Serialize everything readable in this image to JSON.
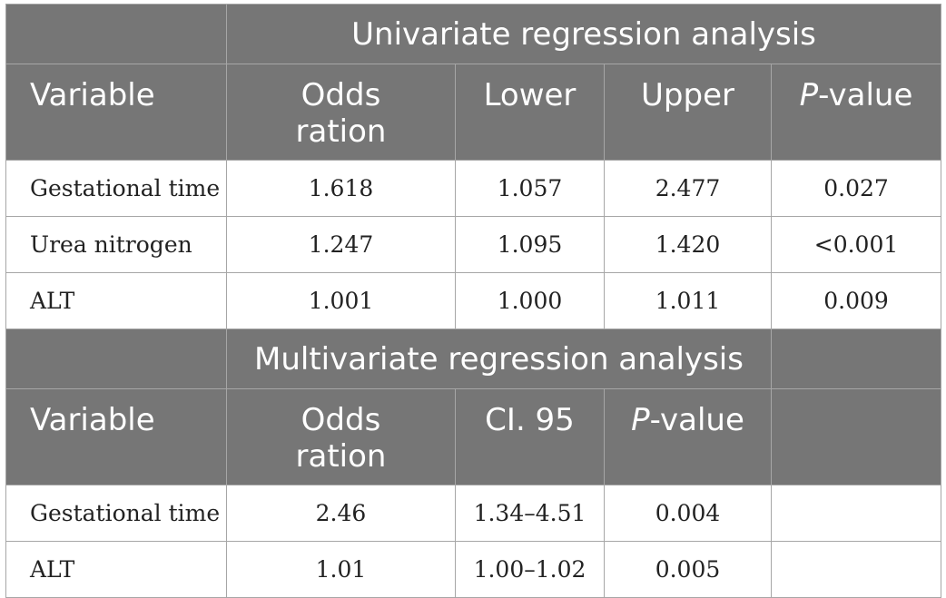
{
  "univariate": {
    "title": "Univariate regression analysis",
    "headers": {
      "variable": "Variable",
      "odds_ratio": "Odds ration",
      "lower": "Lower",
      "upper": "Upper",
      "p_italic": "P",
      "p_rest": "-value"
    },
    "rows": [
      {
        "variable": "Gestational time",
        "odds_ratio": "1.618",
        "lower": "1.057",
        "upper": "2.477",
        "p": "0.027"
      },
      {
        "variable": "Urea nitrogen",
        "odds_ratio": "1.247",
        "lower": "1.095",
        "upper": "1.420",
        "p": "<0.001"
      },
      {
        "variable": "ALT",
        "odds_ratio": "1.001",
        "lower": "1.000",
        "upper": "1.011",
        "p": "0.009"
      }
    ]
  },
  "multivariate": {
    "title": "Multivariate regression analysis",
    "headers": {
      "variable": "Variable",
      "odds_ratio": "Odds ration",
      "ci": "CI. 95",
      "p_italic": "P",
      "p_rest": "-value"
    },
    "rows": [
      {
        "variable": "Gestational time",
        "odds_ratio": "2.46",
        "ci": "1.34–4.51",
        "p": "0.004"
      },
      {
        "variable": "ALT",
        "odds_ratio": "1.01",
        "ci": "1.00–1.02",
        "p": "0.005"
      }
    ]
  }
}
